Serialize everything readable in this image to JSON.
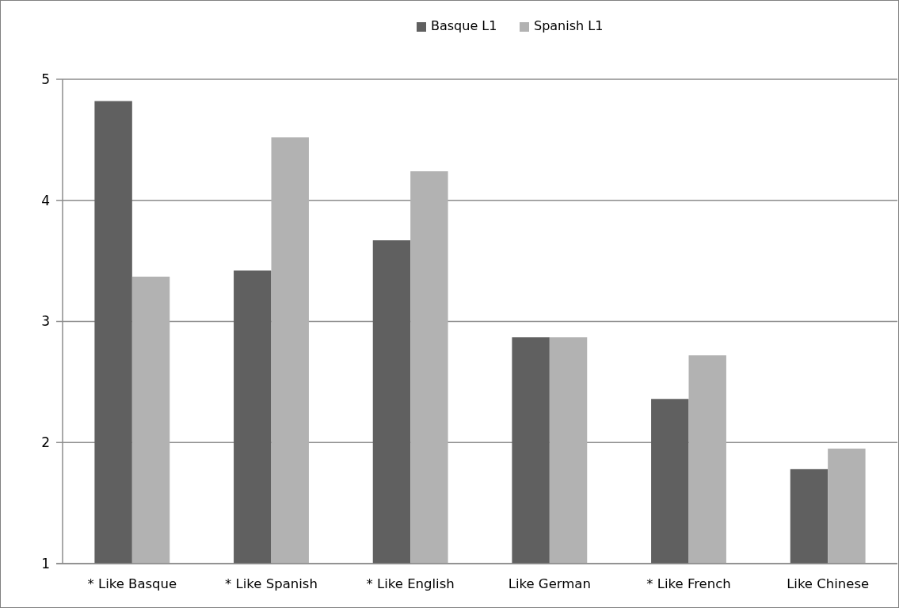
{
  "chart_data": {
    "type": "bar",
    "categories": [
      "* Like Basque",
      "* Like Spanish",
      "* Like English",
      "Like German",
      "* Like French",
      "Like Chinese"
    ],
    "series": [
      {
        "name": "Basque L1",
        "color": "#606060",
        "values": [
          4.82,
          3.42,
          3.67,
          2.87,
          2.36,
          1.78
        ]
      },
      {
        "name": "Spanish L1",
        "color": "#b2b2b2",
        "values": [
          3.37,
          4.52,
          4.24,
          2.87,
          2.72,
          1.95
        ]
      }
    ],
    "ylim": [
      1,
      5
    ],
    "yticks": [
      1,
      2,
      3,
      4,
      5
    ],
    "grid": "y",
    "legend": "top"
  }
}
